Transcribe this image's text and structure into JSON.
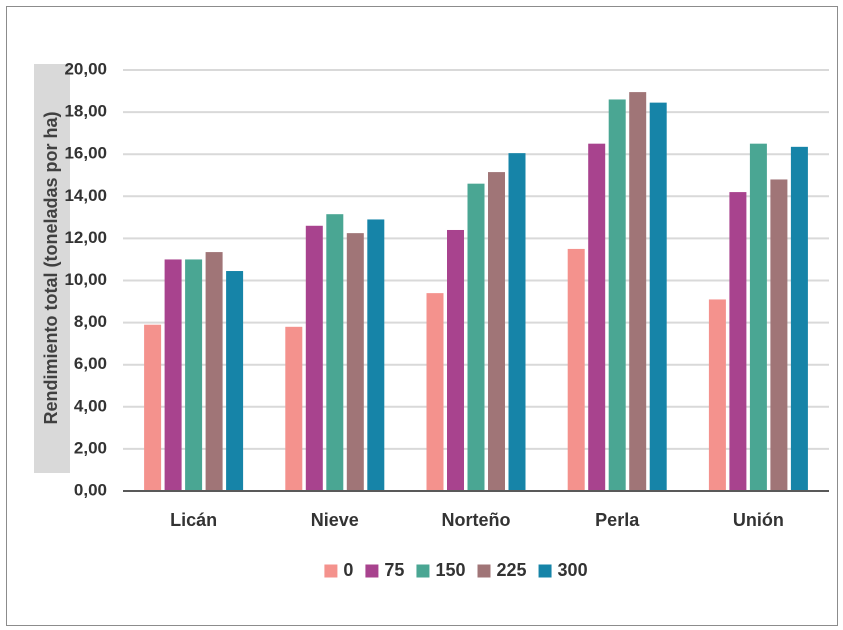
{
  "chart_data": {
    "type": "bar",
    "title": "",
    "xlabel": "",
    "ylabel": "Rendimiento total (toneladas por ha)",
    "ylim": [
      0,
      20
    ],
    "yticks": [
      "0,00",
      "2,00",
      "4,00",
      "6,00",
      "8,00",
      "10,00",
      "12,00",
      "14,00",
      "16,00",
      "18,00",
      "20,00"
    ],
    "grid": true,
    "legend_position": "bottom",
    "categories": [
      "Licán",
      "Nieve",
      "Norteño",
      "Perla",
      "Unión"
    ],
    "series": [
      {
        "name": "0",
        "color": "#f4928d",
        "values": [
          7.9,
          7.8,
          9.4,
          11.5,
          9.1
        ]
      },
      {
        "name": "75",
        "color": "#a8438e",
        "values": [
          11.0,
          12.6,
          12.4,
          16.5,
          14.2
        ]
      },
      {
        "name": "150",
        "color": "#4aa693",
        "values": [
          11.0,
          13.15,
          14.6,
          18.6,
          16.5
        ]
      },
      {
        "name": "225",
        "color": "#a07577",
        "values": [
          11.35,
          12.25,
          15.15,
          18.95,
          14.8
        ]
      },
      {
        "name": "300",
        "color": "#1684a8",
        "values": [
          10.45,
          12.9,
          16.05,
          18.45,
          16.35
        ]
      }
    ]
  }
}
